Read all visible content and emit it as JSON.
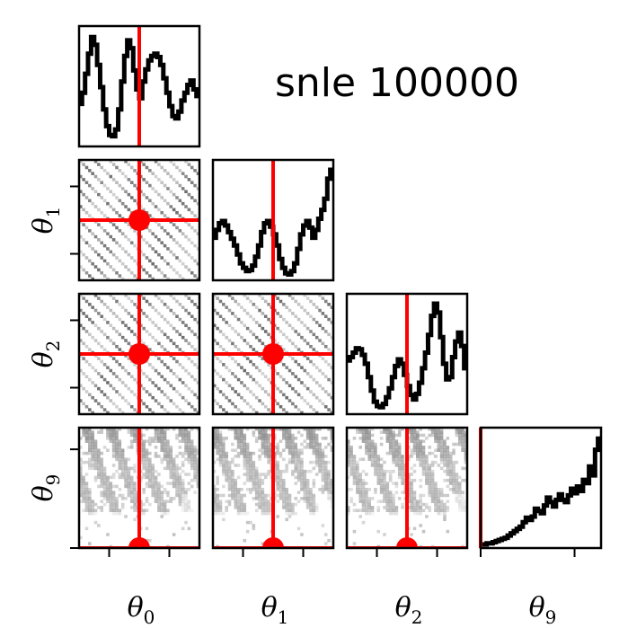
{
  "chart_data": {
    "type": "corner",
    "title": "snle 100000",
    "parameters": [
      "θ0",
      "θ1",
      "θ2",
      "θ9"
    ],
    "axis_labels": [
      {
        "symbol": "θ",
        "sub": "0"
      },
      {
        "symbol": "θ",
        "sub": "1"
      },
      {
        "symbol": "θ",
        "sub": "2"
      },
      {
        "symbol": "θ",
        "sub": "9"
      }
    ],
    "truth": [
      0.5,
      0.5,
      0.5,
      0.0
    ],
    "colors": {
      "truth": "#ff0000",
      "hist": "#000000",
      "density": "#555555"
    },
    "marginals": [
      {
        "param": "θ0",
        "values": [
          0.35,
          0.45,
          0.62,
          0.8,
          0.95,
          0.88,
          0.7,
          0.5,
          0.3,
          0.15,
          0.07,
          0.06,
          0.12,
          0.3,
          0.55,
          0.78,
          0.92,
          0.85,
          0.65,
          0.48,
          0.4,
          0.55,
          0.66,
          0.74,
          0.78,
          0.8,
          0.77,
          0.7,
          0.58,
          0.45,
          0.33,
          0.24,
          0.22,
          0.28,
          0.38,
          0.45,
          0.52,
          0.56,
          0.48,
          0.42
        ]
      },
      {
        "param": "θ1",
        "values": [
          0.35,
          0.42,
          0.48,
          0.5,
          0.46,
          0.4,
          0.34,
          0.28,
          0.2,
          0.12,
          0.08,
          0.05,
          0.06,
          0.1,
          0.18,
          0.28,
          0.4,
          0.48,
          0.5,
          0.45,
          0.38,
          0.28,
          0.16,
          0.08,
          0.03,
          0.02,
          0.05,
          0.12,
          0.25,
          0.38,
          0.46,
          0.5,
          0.44,
          0.35,
          0.42,
          0.52,
          0.6,
          0.7,
          0.88,
          0.96
        ]
      },
      {
        "param": "θ2",
        "values": [
          0.45,
          0.48,
          0.52,
          0.56,
          0.55,
          0.5,
          0.42,
          0.3,
          0.18,
          0.08,
          0.04,
          0.03,
          0.06,
          0.12,
          0.2,
          0.3,
          0.4,
          0.46,
          0.42,
          0.32,
          0.22,
          0.14,
          0.1,
          0.15,
          0.25,
          0.38,
          0.52,
          0.68,
          0.85,
          0.96,
          0.88,
          0.66,
          0.42,
          0.28,
          0.3,
          0.48,
          0.62,
          0.7,
          0.58,
          0.38
        ]
      },
      {
        "param": "θ9",
        "values": [
          0.0,
          0.0,
          0.01,
          0.01,
          0.02,
          0.03,
          0.04,
          0.05,
          0.06,
          0.08,
          0.1,
          0.12,
          0.14,
          0.16,
          0.2,
          0.24,
          0.22,
          0.25,
          0.32,
          0.3,
          0.28,
          0.35,
          0.42,
          0.38,
          0.34,
          0.4,
          0.45,
          0.4,
          0.38,
          0.44,
          0.5,
          0.46,
          0.52,
          0.48,
          0.58,
          0.55,
          0.7,
          0.62,
          0.85,
          0.95
        ]
      }
    ],
    "pairs": [
      {
        "x": "θ0",
        "y": "θ1",
        "pattern": "diagonal",
        "stripes": 8
      },
      {
        "x": "θ0",
        "y": "θ2",
        "pattern": "diagonal",
        "stripes": 8
      },
      {
        "x": "θ1",
        "y": "θ2",
        "pattern": "diagonal",
        "stripes": 8
      },
      {
        "x": "θ0",
        "y": "θ9",
        "pattern": "upper-streak",
        "stripes": 5
      },
      {
        "x": "θ1",
        "y": "θ9",
        "pattern": "upper-streak",
        "stripes": 5
      },
      {
        "x": "θ2",
        "y": "θ9",
        "pattern": "upper-streak",
        "stripes": 5
      }
    ],
    "grid": false,
    "legend": "none"
  }
}
